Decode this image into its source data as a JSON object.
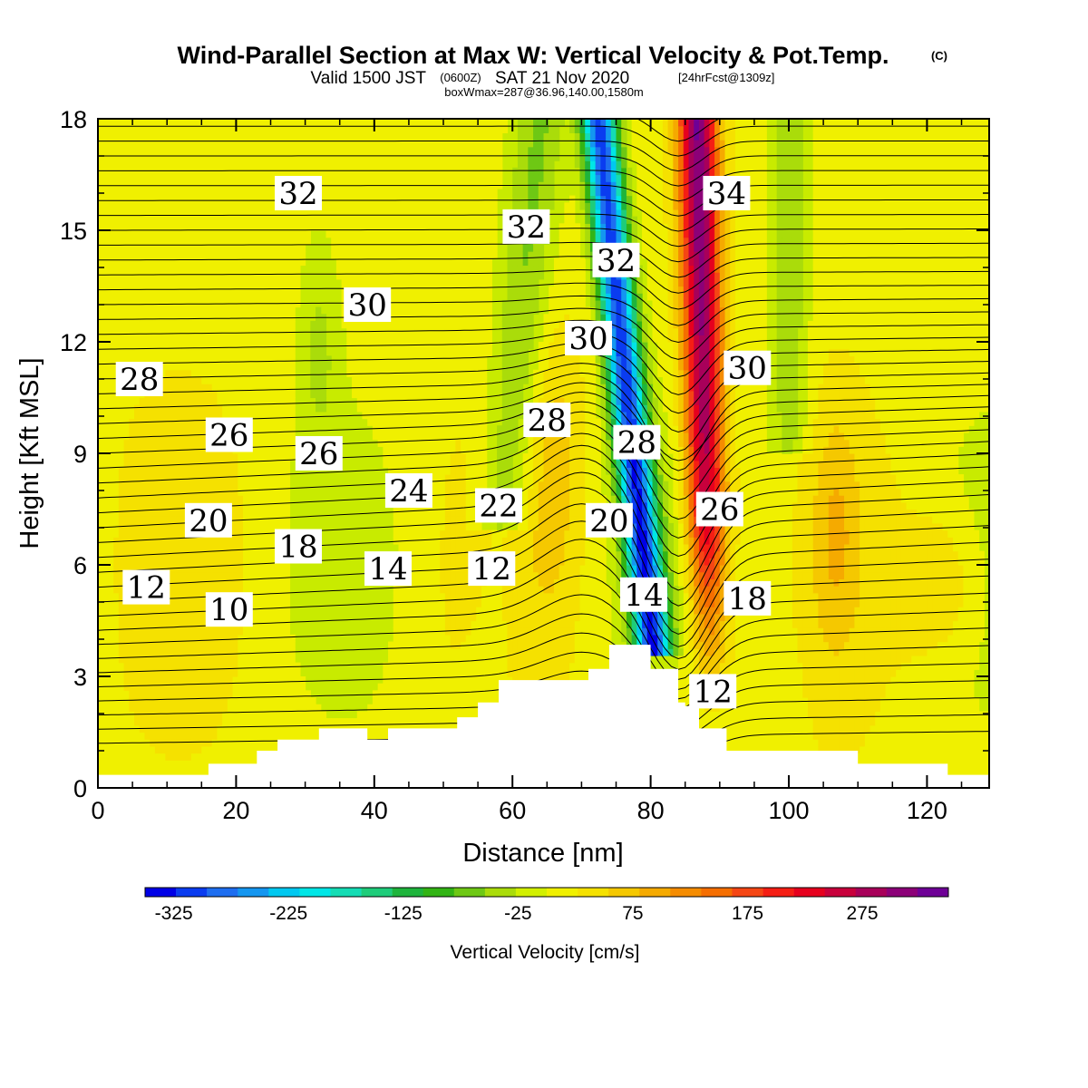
{
  "header": {
    "title": "Wind-Parallel Section at Max W: Vertical Velocity & Pot.Temp.",
    "copyright": "(C)",
    "valid_prefix": "Valid 1500 JST",
    "utc": "(0600Z)",
    "valid_date": "SAT 21 Nov 2020",
    "forecast": "[24hrFcst@1309z]",
    "box_info": "boxWmax=287@36.96,140.00,1580m"
  },
  "chart_data": {
    "type": "heatmap",
    "title": "Wind-Parallel Section at Max W: Vertical Velocity & Pot.Temp.",
    "xlabel": "Distance [nm]",
    "ylabel": "Height [Kft MSL]",
    "xlim": [
      0,
      129
    ],
    "ylim": [
      0,
      18
    ],
    "x_ticks": [
      "0",
      "20",
      "40",
      "60",
      "80",
      "100",
      "120"
    ],
    "y_ticks": [
      "0",
      "3",
      "6",
      "9",
      "12",
      "15",
      "18"
    ],
    "colorbar": {
      "label": "Vertical Velocity [cm/s]",
      "min": -350,
      "max": 350,
      "step": 25,
      "tick_labels": [
        "-325",
        "-225",
        "-125",
        "-25",
        "75",
        "175",
        "275"
      ],
      "colors": [
        "#0000e6",
        "#0a3cf0",
        "#1e6ef0",
        "#1496f0",
        "#00c8f0",
        "#00e6e6",
        "#14dcb4",
        "#1ecc7a",
        "#1eb43c",
        "#32b414",
        "#6ec814",
        "#aadc0a",
        "#d2f000",
        "#f0f000",
        "#f5e100",
        "#f5c800",
        "#f5aa00",
        "#f58c00",
        "#f56e00",
        "#f54614",
        "#f51e14",
        "#e6001e",
        "#c8003c",
        "#a8005a",
        "#8c0078",
        "#6e0096"
      ]
    },
    "terrain_profile": [
      [
        0,
        0.35
      ],
      [
        16,
        0.35
      ],
      [
        16,
        0.65
      ],
      [
        23,
        0.65
      ],
      [
        23,
        1.0
      ],
      [
        26,
        1.0
      ],
      [
        26,
        1.3
      ],
      [
        32,
        1.3
      ],
      [
        32,
        1.6
      ],
      [
        39,
        1.6
      ],
      [
        39,
        1.3
      ],
      [
        42,
        1.3
      ],
      [
        42,
        1.6
      ],
      [
        52,
        1.6
      ],
      [
        52,
        1.9
      ],
      [
        55,
        1.9
      ],
      [
        55,
        2.3
      ],
      [
        58,
        2.3
      ],
      [
        58,
        2.9
      ],
      [
        71,
        2.9
      ],
      [
        71,
        3.2
      ],
      [
        74,
        3.2
      ],
      [
        74,
        3.85
      ],
      [
        80,
        3.85
      ],
      [
        80,
        3.2
      ],
      [
        84,
        3.2
      ],
      [
        84,
        2.3
      ],
      [
        85,
        2.3
      ],
      [
        85,
        2.2
      ],
      [
        87,
        2.2
      ],
      [
        87,
        1.6
      ],
      [
        91,
        1.6
      ],
      [
        91,
        1.0
      ],
      [
        110,
        1.0
      ],
      [
        110,
        0.65
      ],
      [
        123,
        0.65
      ],
      [
        123,
        0.35
      ],
      [
        129,
        0.35
      ]
    ],
    "velocity_features": [
      {
        "name": "updraft",
        "x": 88,
        "y_range": [
          2,
          18
        ],
        "peak_w": 287
      },
      {
        "name": "downdraft",
        "x": 78,
        "y_range": [
          3.5,
          18
        ],
        "peak_w": -300
      }
    ],
    "isentrope_labels": [
      {
        "text": "32",
        "x": 29,
        "y": 16.0
      },
      {
        "text": "32",
        "x": 62,
        "y": 15.1
      },
      {
        "text": "32",
        "x": 75,
        "y": 14.2
      },
      {
        "text": "34",
        "x": 91,
        "y": 16.0
      },
      {
        "text": "30",
        "x": 39,
        "y": 13.0
      },
      {
        "text": "30",
        "x": 71,
        "y": 12.1
      },
      {
        "text": "30",
        "x": 94,
        "y": 11.3
      },
      {
        "text": "28",
        "x": 6,
        "y": 11.0
      },
      {
        "text": "28",
        "x": 65,
        "y": 9.9
      },
      {
        "text": "28",
        "x": 78,
        "y": 9.3
      },
      {
        "text": "26",
        "x": 19,
        "y": 9.5
      },
      {
        "text": "26",
        "x": 32,
        "y": 9.0
      },
      {
        "text": "26",
        "x": 90,
        "y": 7.5
      },
      {
        "text": "24",
        "x": 45,
        "y": 8.0
      },
      {
        "text": "22",
        "x": 58,
        "y": 7.6
      },
      {
        "text": "20",
        "x": 16,
        "y": 7.2
      },
      {
        "text": "20",
        "x": 74,
        "y": 7.2
      },
      {
        "text": "18",
        "x": 29,
        "y": 6.5
      },
      {
        "text": "18",
        "x": 94,
        "y": 5.1
      },
      {
        "text": "14",
        "x": 42,
        "y": 5.9
      },
      {
        "text": "14",
        "x": 79,
        "y": 5.2
      },
      {
        "text": "12",
        "x": 7,
        "y": 5.4
      },
      {
        "text": "12",
        "x": 57,
        "y": 5.9
      },
      {
        "text": "12",
        "x": 89,
        "y": 2.6
      },
      {
        "text": "10",
        "x": 19,
        "y": 4.8
      }
    ]
  }
}
